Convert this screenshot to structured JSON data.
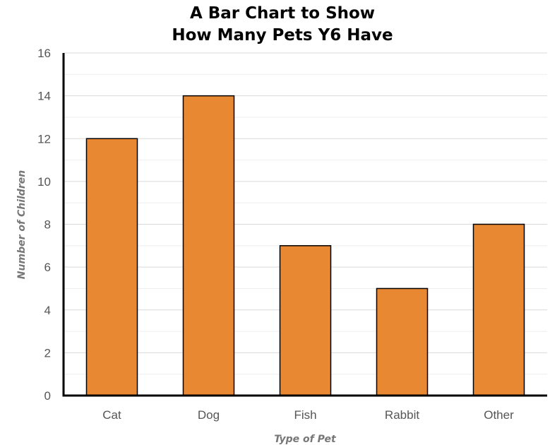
{
  "chart_data": {
    "type": "bar",
    "title": [
      "A Bar Chart to Show",
      "How Many Pets Y6 Have"
    ],
    "categories": [
      "Cat",
      "Dog",
      "Fish",
      "Rabbit",
      "Other"
    ],
    "values": [
      12,
      14,
      7,
      5,
      8
    ],
    "xlabel": "Type of Pet",
    "ylabel": "Number of Children",
    "ylim": [
      0,
      16
    ],
    "yticks": [
      0,
      2,
      4,
      6,
      8,
      10,
      12,
      14,
      16
    ],
    "grid": true,
    "colors": {
      "bar": "#e98832",
      "bar_outline": "#000000",
      "grid": "#d9d9d9",
      "axis": "#000000"
    }
  }
}
